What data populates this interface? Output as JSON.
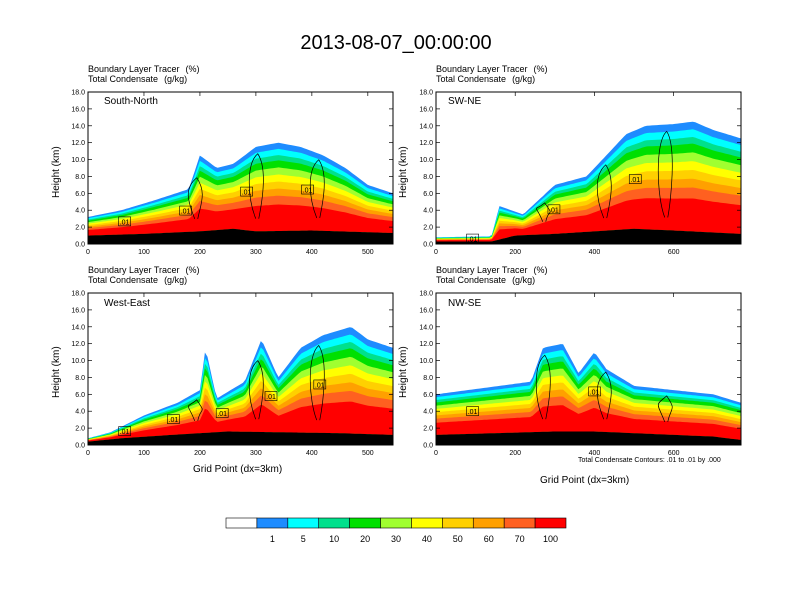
{
  "title": "2013-08-07_00:00:00",
  "chart_data": [
    {
      "type": "area",
      "panel": "South-North",
      "subtitle": "Boundary Layer Tracer",
      "subtitle_units": "(%)",
      "subtitle2": "Total Condensate",
      "subtitle2_units": "(g/kg)",
      "xlabel": "",
      "ylabel": "Height (km)",
      "xlim": [
        0,
        545
      ],
      "ylim": [
        0,
        18
      ],
      "xticks": [
        "0",
        "100",
        "200",
        "300",
        "400",
        "500"
      ],
      "yticks": [
        "0.0",
        "2.0",
        "4.0",
        "6.0",
        "8.0",
        "10.0",
        "12.0",
        "14.0",
        "16.0",
        "18.0"
      ],
      "marker_x": 275,
      "contour_labels": [
        ".01",
        ".01",
        ".01",
        ".01"
      ],
      "tracer_top_km": [
        [
          0,
          3.2
        ],
        [
          60,
          4.0
        ],
        [
          120,
          5.2
        ],
        [
          180,
          6.5
        ],
        [
          200,
          10.5
        ],
        [
          230,
          9.0
        ],
        [
          260,
          9.5
        ],
        [
          300,
          11.5
        ],
        [
          340,
          12.0
        ],
        [
          380,
          11.5
        ],
        [
          420,
          10.5
        ],
        [
          460,
          9.0
        ],
        [
          500,
          7.0
        ],
        [
          545,
          6.0
        ]
      ],
      "terrain_km": [
        [
          0,
          1.0
        ],
        [
          100,
          1.2
        ],
        [
          200,
          1.5
        ],
        [
          260,
          1.8
        ],
        [
          300,
          1.5
        ],
        [
          400,
          1.6
        ],
        [
          545,
          1.3
        ]
      ]
    },
    {
      "type": "area",
      "panel": "SW-NE",
      "subtitle": "Boundary Layer Tracer",
      "subtitle_units": "(%)",
      "subtitle2": "Total Condensate",
      "subtitle2_units": "(g/kg)",
      "xlabel": "",
      "ylabel": "Height (km)",
      "xlim": [
        0,
        770
      ],
      "ylim": [
        0,
        18
      ],
      "xticks": [
        "0",
        "200",
        "400",
        "600"
      ],
      "yticks": [
        "0.0",
        "2.0",
        "4.0",
        "6.0",
        "8.0",
        "10.0",
        "12.0",
        "14.0",
        "16.0",
        "18.0"
      ],
      "marker_x": 390,
      "contour_labels": [
        ".01",
        ".01",
        ".01"
      ],
      "tracer_top_km": [
        [
          0,
          0.8
        ],
        [
          140,
          0.9
        ],
        [
          160,
          4.5
        ],
        [
          220,
          3.5
        ],
        [
          300,
          7.0
        ],
        [
          380,
          8.0
        ],
        [
          440,
          11.0
        ],
        [
          480,
          13.0
        ],
        [
          530,
          14.0
        ],
        [
          600,
          14.2
        ],
        [
          650,
          14.5
        ],
        [
          700,
          13.5
        ],
        [
          770,
          12.5
        ]
      ],
      "terrain_km": [
        [
          0,
          0.3
        ],
        [
          140,
          0.3
        ],
        [
          200,
          1.0
        ],
        [
          300,
          1.2
        ],
        [
          400,
          1.5
        ],
        [
          500,
          1.8
        ],
        [
          600,
          1.6
        ],
        [
          770,
          1.2
        ]
      ]
    },
    {
      "type": "area",
      "panel": "West-East",
      "subtitle": "Boundary Layer Tracer",
      "subtitle_units": "(%)",
      "subtitle2": "Total Condensate",
      "subtitle2_units": "(g/kg)",
      "xlabel": "Grid Point (dx=3km)",
      "ylabel": "Height (km)",
      "xlim": [
        0,
        545
      ],
      "ylim": [
        0,
        18
      ],
      "xticks": [
        "0",
        "100",
        "200",
        "300",
        "400",
        "500"
      ],
      "yticks": [
        "0.0",
        "2.0",
        "4.0",
        "6.0",
        "8.0",
        "10.0",
        "12.0",
        "14.0",
        "16.0",
        "18.0"
      ],
      "marker_x": 275,
      "contour_labels": [
        ".01",
        ".01",
        ".01",
        ".01",
        ".01"
      ],
      "tracer_top_km": [
        [
          0,
          0.8
        ],
        [
          40,
          1.5
        ],
        [
          100,
          3.5
        ],
        [
          160,
          5.0
        ],
        [
          200,
          6.5
        ],
        [
          210,
          11.5
        ],
        [
          230,
          5.5
        ],
        [
          280,
          7.5
        ],
        [
          310,
          12.5
        ],
        [
          340,
          8.0
        ],
        [
          380,
          11.5
        ],
        [
          420,
          13.0
        ],
        [
          470,
          14.0
        ],
        [
          500,
          12.5
        ],
        [
          545,
          11.5
        ]
      ],
      "terrain_km": [
        [
          0,
          0.4
        ],
        [
          60,
          0.8
        ],
        [
          150,
          1.2
        ],
        [
          250,
          1.6
        ],
        [
          350,
          1.5
        ],
        [
          450,
          1.4
        ],
        [
          545,
          1.2
        ]
      ]
    },
    {
      "type": "area",
      "panel": "NW-SE",
      "subtitle": "Boundary Layer Tracer",
      "subtitle_units": "(%)",
      "subtitle2": "Total Condensate",
      "subtitle2_units": "(g/kg)",
      "xlabel": "Grid Point (dx=3km)",
      "ylabel": "Height (km)",
      "xlim": [
        0,
        770
      ],
      "ylim": [
        0,
        18
      ],
      "xticks": [
        "0",
        "200",
        "400",
        "600"
      ],
      "yticks": [
        "0.0",
        "2.0",
        "4.0",
        "6.0",
        "8.0",
        "10.0",
        "12.0",
        "14.0",
        "16.0",
        "18.0"
      ],
      "marker_x": 390,
      "contour_labels": [
        ".01",
        ".01"
      ],
      "footnote": "Total Condensate Contours: .01 to .01 by .000",
      "tracer_top_km": [
        [
          0,
          6.0
        ],
        [
          80,
          6.5
        ],
        [
          160,
          7.0
        ],
        [
          240,
          7.5
        ],
        [
          270,
          11.5
        ],
        [
          320,
          12.0
        ],
        [
          360,
          8.5
        ],
        [
          400,
          11.0
        ],
        [
          430,
          9.0
        ],
        [
          500,
          7.0
        ],
        [
          600,
          6.5
        ],
        [
          700,
          6.0
        ],
        [
          770,
          5.0
        ]
      ],
      "terrain_km": [
        [
          0,
          1.2
        ],
        [
          150,
          1.4
        ],
        [
          300,
          1.6
        ],
        [
          400,
          1.6
        ],
        [
          550,
          1.3
        ],
        [
          700,
          1.0
        ],
        [
          770,
          0.6
        ]
      ]
    }
  ],
  "colorbar": {
    "labels": [
      "1",
      "5",
      "10",
      "20",
      "30",
      "40",
      "50",
      "60",
      "70",
      "100"
    ],
    "colors": [
      "#ffffff",
      "#1e8cff",
      "#00ffff",
      "#00e08c",
      "#00e000",
      "#a0ff30",
      "#ffff00",
      "#ffd000",
      "#ffa000",
      "#ff6020",
      "#ff0000"
    ]
  }
}
